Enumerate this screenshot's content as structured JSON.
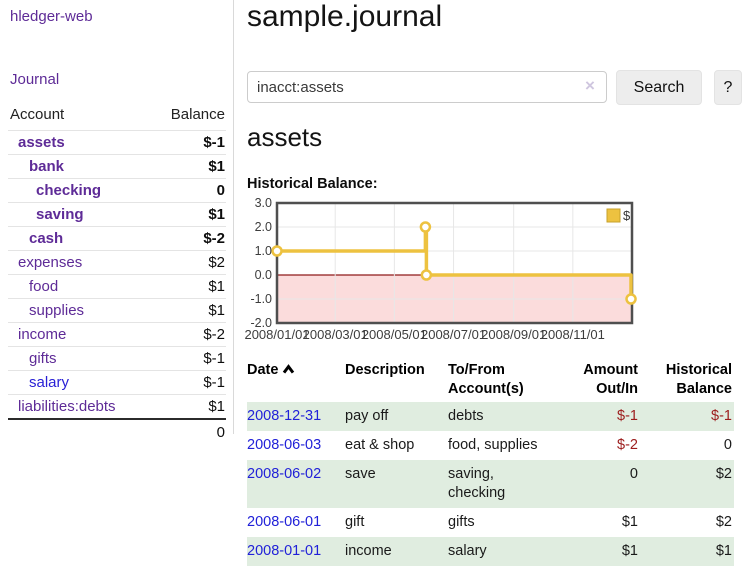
{
  "sidebar": {
    "brand": "hledger-web",
    "journal_link": "Journal",
    "accounts_table": {
      "header_account": "Account",
      "header_balance": "Balance",
      "rows": [
        {
          "name": "assets",
          "indent": 1,
          "bold": true,
          "balance": "$-1",
          "neg": "strong"
        },
        {
          "name": "bank",
          "indent": 2,
          "bold": true,
          "balance": "$1",
          "neg": null
        },
        {
          "name": "checking",
          "indent": 3,
          "bold": true,
          "balance": "0",
          "neg": null
        },
        {
          "name": "saving",
          "indent": 3,
          "bold": true,
          "balance": "$1",
          "neg": null
        },
        {
          "name": "cash",
          "indent": 2,
          "bold": true,
          "balance": "$-2",
          "neg": "strong"
        },
        {
          "name": "expenses",
          "indent": 1,
          "bold": false,
          "balance": "$2",
          "neg": null
        },
        {
          "name": "food",
          "indent": 2,
          "bold": false,
          "balance": "$1",
          "neg": null
        },
        {
          "name": "supplies",
          "indent": 2,
          "bold": false,
          "balance": "$1",
          "neg": null
        },
        {
          "name": "income",
          "indent": 1,
          "bold": false,
          "balance": "$-2",
          "neg": "soft"
        },
        {
          "name": "gifts",
          "indent": 2,
          "bold": false,
          "balance": "$-1",
          "neg": "soft"
        },
        {
          "name": "salary",
          "indent": 2,
          "bold": false,
          "balance": "$-1",
          "neg": "soft",
          "unvisited": true
        },
        {
          "name": "liabilities:debts",
          "indent": 1,
          "bold": false,
          "balance": "$1",
          "neg": null
        }
      ],
      "total": "0"
    }
  },
  "header": {
    "title": "sample.journal"
  },
  "search": {
    "value": "inacct:assets",
    "clear_icon": "×",
    "button_label": "Search",
    "help_label": "?"
  },
  "account_page": {
    "heading": "assets",
    "chart_label": "Historical Balance:"
  },
  "chart_data": {
    "type": "line",
    "title": "Historical Balance:",
    "line_style": "step",
    "x_domain": [
      "2008/01/01",
      "2009/01/01"
    ],
    "x_ticks": [
      "2008/01/01",
      "2008/03/01",
      "2008/05/01",
      "2008/07/01",
      "2008/09/01",
      "2008/11/01"
    ],
    "y_ticks": [
      "3.0",
      "2.0",
      "1.0",
      "0.0",
      "-1.0",
      "-2.0"
    ],
    "ylim": [
      -2,
      3
    ],
    "grid": true,
    "legend": {
      "label": "$",
      "position": "top-right"
    },
    "series": [
      {
        "name": "$",
        "color": "#edc240",
        "points": [
          {
            "date": "2008/01/01",
            "value": 1
          },
          {
            "date": "2008/06/02",
            "value": 2
          },
          {
            "date": "2008/06/03",
            "value": 0
          },
          {
            "date": "2008/12/31",
            "value": -1
          }
        ]
      }
    ],
    "negative_region": {
      "from": 0,
      "to": -2,
      "color": "#fbdcdc"
    },
    "zero_line_color": "#8e1a1a",
    "grid_color": "#e7e7e7",
    "border_color": "#4f4f4f"
  },
  "register": {
    "header_date": "Date",
    "sort_direction": "ascending",
    "header_description": "Description",
    "header_tofrom_1": "To/From",
    "header_tofrom_2": "Account(s)",
    "header_amount_1": "Amount",
    "header_amount_2": "Out/In",
    "header_hist_1": "Historical",
    "header_hist_2": "Balance",
    "rows": [
      {
        "date": "2008-12-31",
        "description": "pay off",
        "accounts": "debts",
        "amount": "$-1",
        "amount_neg": true,
        "balance": "$-1",
        "balance_neg": true
      },
      {
        "date": "2008-06-03",
        "description": "eat & shop",
        "accounts": "food, supplies",
        "amount": "$-2",
        "amount_neg": true,
        "balance": "0",
        "balance_neg": false
      },
      {
        "date": "2008-06-02",
        "description": "save",
        "accounts": "saving, checking",
        "amount": "0",
        "amount_neg": false,
        "balance": "$2",
        "balance_neg": false
      },
      {
        "date": "2008-06-01",
        "description": "gift",
        "accounts": "gifts",
        "amount": "$1",
        "amount_neg": false,
        "balance": "$2",
        "balance_neg": false
      },
      {
        "date": "2008-01-01",
        "description": "income",
        "accounts": "salary",
        "amount": "$1",
        "amount_neg": false,
        "balance": "$1",
        "balance_neg": false
      }
    ]
  },
  "colors": {
    "link_purple": "#5e2b97",
    "link_blue": "#2121d8",
    "negative_strong": "#8c1515",
    "negative_soft": "#c2605c",
    "table_negative": "#9c1c1c",
    "row_stripe_green": "#e0ede0",
    "chart_line": "#edc240"
  }
}
